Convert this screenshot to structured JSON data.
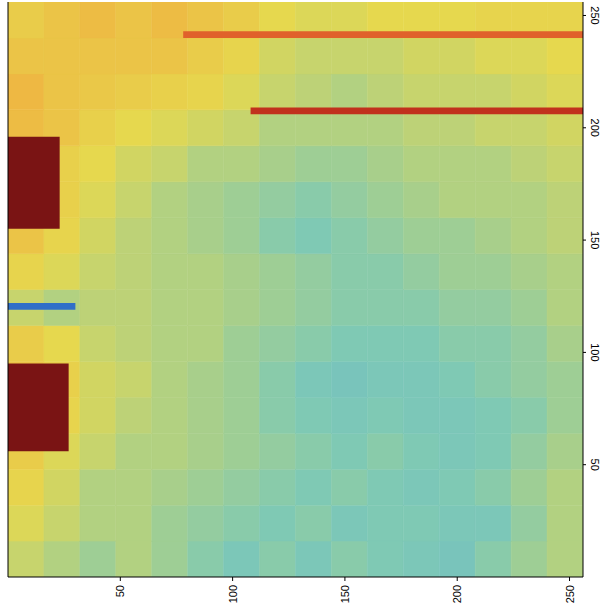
{
  "chart_data": {
    "type": "heatmap",
    "xlim": [
      0,
      256
    ],
    "ylim": [
      0,
      256
    ],
    "xticks": [
      50,
      100,
      150,
      200,
      250
    ],
    "yticks": [
      50,
      100,
      150,
      200,
      250
    ],
    "zlim": [
      0,
      1
    ],
    "x_edges": [
      0,
      16,
      32,
      48,
      64,
      80,
      96,
      112,
      128,
      144,
      160,
      176,
      192,
      208,
      224,
      240,
      256
    ],
    "y_edges": [
      0,
      16,
      32,
      48,
      64,
      80,
      96,
      112,
      128,
      144,
      160,
      176,
      192,
      208,
      224,
      240,
      256
    ],
    "cells": [
      [
        0.52,
        0.5,
        0.48,
        0.5,
        0.48,
        0.46,
        0.44,
        0.46,
        0.44,
        0.46,
        0.45,
        0.44,
        0.43,
        0.46,
        0.48,
        0.5
      ],
      [
        0.54,
        0.52,
        0.5,
        0.5,
        0.48,
        0.47,
        0.46,
        0.45,
        0.46,
        0.44,
        0.45,
        0.45,
        0.44,
        0.44,
        0.47,
        0.5
      ],
      [
        0.56,
        0.53,
        0.5,
        0.5,
        0.49,
        0.48,
        0.47,
        0.46,
        0.45,
        0.46,
        0.45,
        0.44,
        0.45,
        0.46,
        0.48,
        0.5
      ],
      [
        0.58,
        0.54,
        0.52,
        0.5,
        0.5,
        0.49,
        0.48,
        0.47,
        0.46,
        0.45,
        0.46,
        0.45,
        0.44,
        0.45,
        0.47,
        0.49
      ],
      [
        0.6,
        0.56,
        0.53,
        0.51,
        0.5,
        0.49,
        0.48,
        0.46,
        0.45,
        0.44,
        0.45,
        0.44,
        0.44,
        0.45,
        0.46,
        0.48
      ],
      [
        0.6,
        0.57,
        0.53,
        0.52,
        0.5,
        0.49,
        0.48,
        0.46,
        0.44,
        0.43,
        0.44,
        0.44,
        0.45,
        0.46,
        0.47,
        0.48
      ],
      [
        0.58,
        0.55,
        0.52,
        0.51,
        0.5,
        0.5,
        0.48,
        0.47,
        0.46,
        0.45,
        0.45,
        0.45,
        0.46,
        0.46,
        0.47,
        0.49
      ],
      [
        0.52,
        0.5,
        0.51,
        0.51,
        0.5,
        0.5,
        0.49,
        0.48,
        0.47,
        0.46,
        0.46,
        0.46,
        0.47,
        0.47,
        0.48,
        0.5
      ],
      [
        0.56,
        0.54,
        0.52,
        0.51,
        0.5,
        0.5,
        0.49,
        0.48,
        0.47,
        0.46,
        0.46,
        0.47,
        0.48,
        0.48,
        0.49,
        0.5
      ],
      [
        0.6,
        0.56,
        0.53,
        0.51,
        0.5,
        0.49,
        0.48,
        0.46,
        0.45,
        0.46,
        0.47,
        0.48,
        0.48,
        0.49,
        0.5,
        0.51
      ],
      [
        0.6,
        0.57,
        0.54,
        0.52,
        0.5,
        0.49,
        0.48,
        0.47,
        0.46,
        0.47,
        0.48,
        0.49,
        0.5,
        0.5,
        0.5,
        0.51
      ],
      [
        0.6,
        0.57,
        0.55,
        0.53,
        0.52,
        0.5,
        0.5,
        0.49,
        0.48,
        0.48,
        0.49,
        0.5,
        0.5,
        0.5,
        0.51,
        0.52
      ],
      [
        0.62,
        0.6,
        0.57,
        0.55,
        0.54,
        0.53,
        0.52,
        0.5,
        0.5,
        0.5,
        0.5,
        0.51,
        0.51,
        0.52,
        0.52,
        0.53
      ],
      [
        0.63,
        0.6,
        0.59,
        0.58,
        0.57,
        0.56,
        0.54,
        0.52,
        0.51,
        0.5,
        0.51,
        0.52,
        0.52,
        0.52,
        0.53,
        0.54
      ],
      [
        0.6,
        0.6,
        0.6,
        0.6,
        0.6,
        0.58,
        0.56,
        0.53,
        0.52,
        0.52,
        0.52,
        0.53,
        0.53,
        0.54,
        0.54,
        0.55
      ],
      [
        0.58,
        0.6,
        0.62,
        0.6,
        0.62,
        0.6,
        0.58,
        0.55,
        0.54,
        0.54,
        0.55,
        0.55,
        0.55,
        0.56,
        0.56,
        0.56
      ]
    ],
    "regions": [
      {
        "x": [
          0,
          27
        ],
        "y": [
          56,
          95
        ],
        "value": 1.0
      },
      {
        "x": [
          0,
          23
        ],
        "y": [
          155,
          196
        ],
        "value": 1.0
      },
      {
        "x": [
          0,
          30
        ],
        "y": [
          119,
          122
        ],
        "value": 0.2
      },
      {
        "x": [
          108,
          256
        ],
        "y": [
          206,
          209
        ],
        "value": 0.85
      },
      {
        "x": [
          78,
          256
        ],
        "y": [
          240,
          243
        ],
        "value": 0.75
      }
    ]
  }
}
